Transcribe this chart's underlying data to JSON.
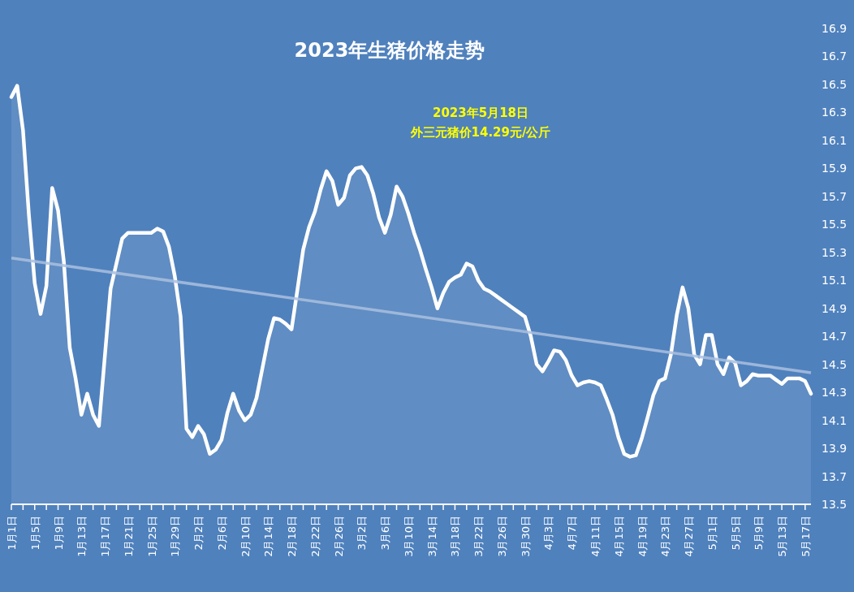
{
  "chart_data": {
    "type": "line",
    "title": "2023年生猪价格走势",
    "annotations": [
      "2023年5月18日",
      "外三元猪价14.29元/公斤"
    ],
    "x": [
      "--01-01",
      "--01-02",
      "--01-03",
      "--01-04",
      "--01-05",
      "--01-06",
      "--01-07",
      "--01-08",
      "--01-09",
      "--01-10",
      "--01-11",
      "--01-12",
      "--01-13",
      "--01-14",
      "--01-15",
      "--01-16",
      "--01-17",
      "--01-18",
      "--01-19",
      "--01-20",
      "--01-21",
      "--01-22",
      "--01-23",
      "--01-24",
      "--01-25",
      "--01-26",
      "--01-27",
      "--01-28",
      "--01-29",
      "--01-30",
      "--01-31",
      "--02-01",
      "--02-02",
      "--02-03",
      "--02-04",
      "--02-05",
      "--02-06",
      "--02-07",
      "--02-08",
      "--02-09",
      "--02-10",
      "--02-11",
      "--02-12",
      "--02-13",
      "--02-14",
      "--02-15",
      "--02-16",
      "--02-17",
      "--02-18",
      "--02-19",
      "--02-20",
      "--02-21",
      "--02-22",
      "--02-23",
      "--02-24",
      "--02-25",
      "--02-26",
      "--02-27",
      "--02-28",
      "--03-01",
      "--03-02",
      "--03-03",
      "--03-04",
      "--03-05",
      "--03-06",
      "--03-07",
      "--03-08",
      "--03-09",
      "--03-10",
      "--03-11",
      "--03-12",
      "--03-13",
      "--03-14",
      "--03-15",
      "--03-16",
      "--03-17",
      "--03-18",
      "--03-19",
      "--03-20",
      "--03-21",
      "--03-22",
      "--03-23",
      "--03-24",
      "--03-25",
      "--03-26",
      "--03-27",
      "--03-28",
      "--03-29",
      "--03-30",
      "--03-31",
      "--04-01",
      "--04-02",
      "--04-03",
      "--04-04",
      "--04-05",
      "--04-06",
      "--04-07",
      "--04-08",
      "--04-09",
      "--04-10",
      "--04-11",
      "--04-12",
      "--04-13",
      "--04-14",
      "--04-15",
      "--04-16",
      "--04-17",
      "--04-18",
      "--04-19",
      "--04-20",
      "--04-21",
      "--04-22",
      "--04-23",
      "--04-24",
      "--04-25",
      "--04-26",
      "--04-27",
      "--04-28",
      "--04-29",
      "--04-30",
      "--05-01",
      "--05-02",
      "--05-03",
      "--05-04",
      "--05-05",
      "--05-06",
      "--05-07",
      "--05-08",
      "--05-09",
      "--05-10",
      "--05-11",
      "--05-12",
      "--05-13",
      "--05-14",
      "--05-15",
      "--05-16",
      "--05-17",
      "--05-18"
    ],
    "series": [
      {
        "type": "area",
        "color": "#ffffff",
        "values": [
          16.41,
          16.49,
          16.17,
          15.57,
          15.08,
          14.86,
          15.06,
          15.76,
          15.6,
          15.23,
          14.62,
          14.4,
          14.14,
          14.29,
          14.14,
          14.06,
          14.55,
          15.04,
          15.22,
          15.4,
          15.44,
          15.44,
          15.44,
          15.44,
          15.44,
          15.47,
          15.45,
          15.34,
          15.13,
          14.84,
          14.04,
          13.98,
          14.06,
          14.0,
          13.86,
          13.89,
          13.96,
          14.15,
          14.29,
          14.17,
          14.1,
          14.14,
          14.26,
          14.47,
          14.68,
          14.83,
          14.82,
          14.79,
          14.75,
          15.03,
          15.32,
          15.48,
          15.59,
          15.75,
          15.88,
          15.81,
          15.64,
          15.69,
          15.85,
          15.9,
          15.91,
          15.85,
          15.72,
          15.55,
          15.44,
          15.57,
          15.77,
          15.7,
          15.58,
          15.44,
          15.32,
          15.18,
          15.05,
          14.9,
          15.01,
          15.09,
          15.12,
          15.14,
          15.22,
          15.2,
          15.1,
          15.04,
          15.02,
          14.99,
          14.96,
          14.93,
          14.9,
          14.87,
          14.84,
          14.7,
          14.5,
          14.45,
          14.52,
          14.6,
          14.59,
          14.53,
          14.42,
          14.35,
          14.37,
          14.38,
          14.37,
          14.35,
          14.25,
          14.14,
          13.98,
          13.86,
          13.84,
          13.85,
          13.97,
          14.12,
          14.28,
          14.38,
          14.4,
          14.57,
          14.85,
          15.05,
          14.9,
          14.57,
          14.5,
          14.71,
          14.71,
          14.5,
          14.43,
          14.55,
          14.51,
          14.35,
          14.38,
          14.43,
          14.42,
          14.42,
          14.42,
          14.39,
          14.36,
          14.4,
          14.4,
          14.4,
          14.38,
          14.29
        ]
      },
      {
        "type": "line",
        "color": "#a9c0df",
        "x": [
          "--01-01",
          "--05-18"
        ],
        "values": [
          15.26,
          14.44
        ]
      }
    ],
    "xlim": [
      "--01-01",
      "--05-18"
    ],
    "xticks": [
      {
        "value": "--01-01",
        "label": "1月1日"
      },
      {
        "value": "--01-03",
        "label": null
      },
      {
        "value": "--01-05",
        "label": "1月5日"
      },
      {
        "value": "--01-07",
        "label": null
      },
      {
        "value": "--01-09",
        "label": "1月9日"
      },
      {
        "value": "--01-11",
        "label": null
      },
      {
        "value": "--01-13",
        "label": "1月13日"
      },
      {
        "value": "--01-15",
        "label": null
      },
      {
        "value": "--01-17",
        "label": "1月17日"
      },
      {
        "value": "--01-19",
        "label": null
      },
      {
        "value": "--01-21",
        "label": "1月21日"
      },
      {
        "value": "--01-23",
        "label": null
      },
      {
        "value": "--01-25",
        "label": "1月25日"
      },
      {
        "value": "--01-27",
        "label": null
      },
      {
        "value": "--01-29",
        "label": "1月29日"
      },
      {
        "value": "--01-31",
        "label": null
      },
      {
        "value": "--02-02",
        "label": "2月2日"
      },
      {
        "value": "--02-04",
        "label": null
      },
      {
        "value": "--02-06",
        "label": "2月6日"
      },
      {
        "value": "--02-08",
        "label": null
      },
      {
        "value": "--02-10",
        "label": "2月10日"
      },
      {
        "value": "--02-12",
        "label": null
      },
      {
        "value": "--02-14",
        "label": "2月14日"
      },
      {
        "value": "--02-16",
        "label": null
      },
      {
        "value": "--02-18",
        "label": "2月18日"
      },
      {
        "value": "--02-20",
        "label": null
      },
      {
        "value": "--02-22",
        "label": "2月22日"
      },
      {
        "value": "--02-24",
        "label": null
      },
      {
        "value": "--02-26",
        "label": "2月26日"
      },
      {
        "value": "--02-28",
        "label": null
      },
      {
        "value": "--03-02",
        "label": "3月2日"
      },
      {
        "value": "--03-04",
        "label": null
      },
      {
        "value": "--03-06",
        "label": "3月6日"
      },
      {
        "value": "--03-08",
        "label": null
      },
      {
        "value": "--03-10",
        "label": "3月10日"
      },
      {
        "value": "--03-12",
        "label": null
      },
      {
        "value": "--03-14",
        "label": "3月14日"
      },
      {
        "value": "--03-16",
        "label": null
      },
      {
        "value": "--03-18",
        "label": "3月18日"
      },
      {
        "value": "--03-20",
        "label": null
      },
      {
        "value": "--03-22",
        "label": "3月22日"
      },
      {
        "value": "--03-24",
        "label": null
      },
      {
        "value": "--03-26",
        "label": "3月26日"
      },
      {
        "value": "--03-28",
        "label": null
      },
      {
        "value": "--03-30",
        "label": "3月30日"
      },
      {
        "value": "--04-01",
        "label": null
      },
      {
        "value": "--04-03",
        "label": "4月3日"
      },
      {
        "value": "--04-05",
        "label": null
      },
      {
        "value": "--04-07",
        "label": "4月7日"
      },
      {
        "value": "--04-09",
        "label": null
      },
      {
        "value": "--04-11",
        "label": "4月11日"
      },
      {
        "value": "--04-13",
        "label": null
      },
      {
        "value": "--04-15",
        "label": "4月15日"
      },
      {
        "value": "--04-17",
        "label": null
      },
      {
        "value": "--04-19",
        "label": "4月19日"
      },
      {
        "value": "--04-21",
        "label": null
      },
      {
        "value": "--04-23",
        "label": "4月23日"
      },
      {
        "value": "--04-25",
        "label": null
      },
      {
        "value": "--04-27",
        "label": "4月27日"
      },
      {
        "value": "--04-29",
        "label": null
      },
      {
        "value": "--05-01",
        "label": "5月1日"
      },
      {
        "value": "--05-03",
        "label": null
      },
      {
        "value": "--05-05",
        "label": "5月5日"
      },
      {
        "value": "--05-07",
        "label": null
      },
      {
        "value": "--05-09",
        "label": "5月9日"
      },
      {
        "value": "--05-11",
        "label": null
      },
      {
        "value": "--05-13",
        "label": "5月13日"
      },
      {
        "value": "--05-15",
        "label": null
      },
      {
        "value": "--05-17",
        "label": "5月17日"
      }
    ],
    "ylim": [
      13.5,
      16.9
    ],
    "yticks": [
      13.5,
      13.7,
      13.9,
      14.1,
      14.3,
      14.5,
      14.7,
      14.9,
      15.1,
      15.3,
      15.5,
      15.7,
      15.9,
      16.1,
      16.3,
      16.5,
      16.7,
      16.9
    ],
    "grid": false
  }
}
